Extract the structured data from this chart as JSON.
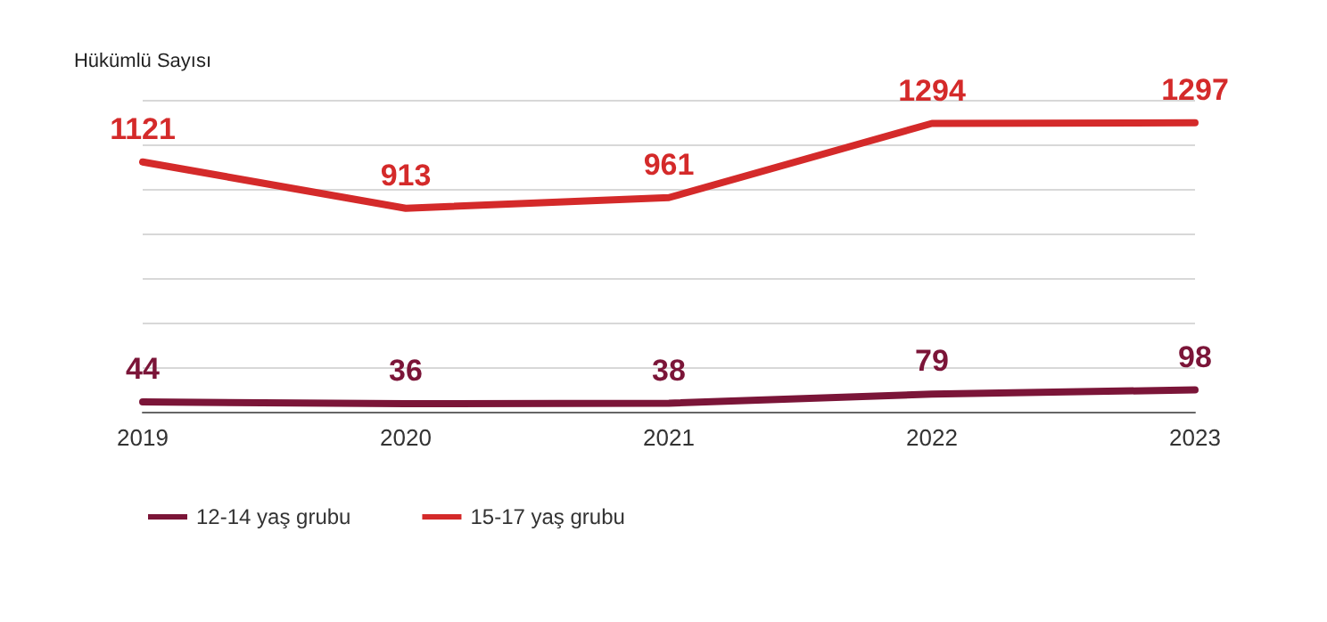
{
  "chart_data": {
    "type": "line",
    "ylabel": "Hükümlü Sayısı",
    "categories": [
      "2019",
      "2020",
      "2021",
      "2022",
      "2023"
    ],
    "series": [
      {
        "name": "12-14 yaş grubu",
        "color": "#7b1538",
        "values": [
          44,
          36,
          38,
          79,
          98
        ]
      },
      {
        "name": "15-17 yaş grubu",
        "color": "#d42a2a",
        "values": [
          1121,
          913,
          961,
          1294,
          1297
        ]
      }
    ],
    "ylim": [
      0,
      1400
    ],
    "yticks": [
      {
        "value": 0,
        "label": null
      },
      {
        "value": 200,
        "label": null
      },
      {
        "value": 400,
        "label": null
      },
      {
        "value": 600,
        "label": null
      },
      {
        "value": 800,
        "label": null
      },
      {
        "value": 1000,
        "label": null
      },
      {
        "value": 1200,
        "label": null
      },
      {
        "value": 1400,
        "label": null
      }
    ],
    "tick_labels": "x",
    "grid": "y",
    "legend": "bottom left",
    "marker": "none",
    "line_style": "solid",
    "data_labels": true
  }
}
